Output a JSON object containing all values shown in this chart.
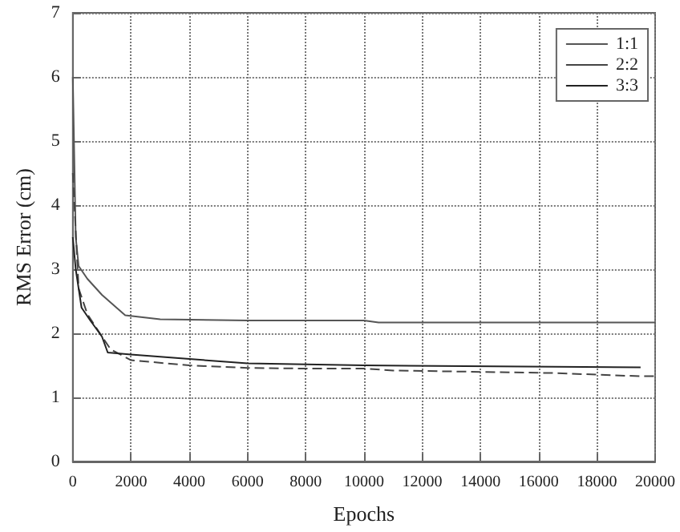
{
  "chart_data": {
    "type": "line",
    "xlabel": "Epochs",
    "ylabel": "RMS Error (cm)",
    "xlim": [
      0,
      20000
    ],
    "xticks": [
      0,
      2000,
      4000,
      6000,
      8000,
      10000,
      12000,
      14000,
      16000,
      18000,
      20000
    ],
    "ylim": [
      0,
      7
    ],
    "yticks": [
      0,
      1,
      2,
      3,
      4,
      5,
      6,
      7
    ],
    "grid": true,
    "legend": "top right",
    "marker": "none",
    "series": [
      {
        "name": "1:1",
        "color": "#555555",
        "line_style": "solid",
        "x": [
          0,
          100,
          200,
          500,
          1000,
          1500,
          1800,
          3000,
          6000,
          10000,
          10500,
          20000
        ],
        "values": [
          6.0,
          3.5,
          3.05,
          2.85,
          2.6,
          2.4,
          2.28,
          2.22,
          2.2,
          2.2,
          2.17,
          2.17
        ]
      },
      {
        "name": "2:2",
        "color": "#444444",
        "line_style": "dashed",
        "x": [
          0,
          200,
          500,
          1000,
          1300,
          2000,
          4000,
          6000,
          8000,
          10000,
          11000,
          16500,
          19500,
          20000
        ],
        "values": [
          4.5,
          2.7,
          2.3,
          1.95,
          1.75,
          1.58,
          1.5,
          1.46,
          1.45,
          1.45,
          1.42,
          1.38,
          1.33,
          1.33
        ]
      },
      {
        "name": "3:3",
        "color": "#222222",
        "line_style": "solid",
        "x": [
          0,
          100,
          300,
          600,
          1000,
          1200,
          2000,
          4000,
          6000,
          10000,
          19500
        ],
        "values": [
          3.5,
          3.0,
          2.4,
          2.2,
          1.95,
          1.7,
          1.67,
          1.6,
          1.53,
          1.5,
          1.47
        ]
      }
    ]
  }
}
